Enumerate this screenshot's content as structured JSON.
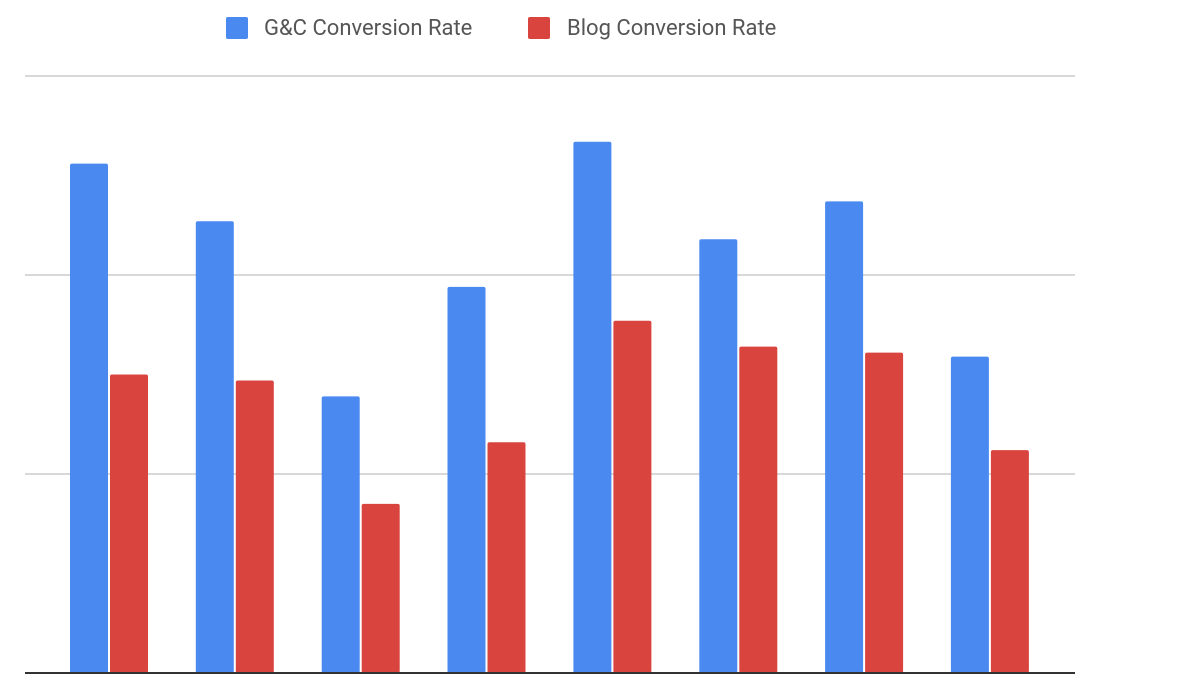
{
  "chart_data": {
    "type": "bar",
    "title": "",
    "xlabel": "",
    "ylabel": "",
    "categories": [
      "",
      "",
      "",
      "",
      "",
      "",
      "",
      ""
    ],
    "series": [
      {
        "name": "G&C Conversion Rate",
        "color": "#4a8af0",
        "values": [
          2.56,
          2.27,
          1.39,
          1.94,
          2.67,
          2.18,
          2.37,
          1.59
        ]
      },
      {
        "name": "Blog Conversion Rate",
        "color": "#d9443f",
        "values": [
          1.5,
          1.47,
          0.85,
          1.16,
          1.77,
          1.64,
          1.61,
          1.12
        ]
      }
    ],
    "ylim": [
      0,
      3
    ],
    "gridlines": [
      1,
      2,
      3
    ],
    "grid": true,
    "y_tick_labels_shown": false,
    "legend_position": "top-center"
  }
}
